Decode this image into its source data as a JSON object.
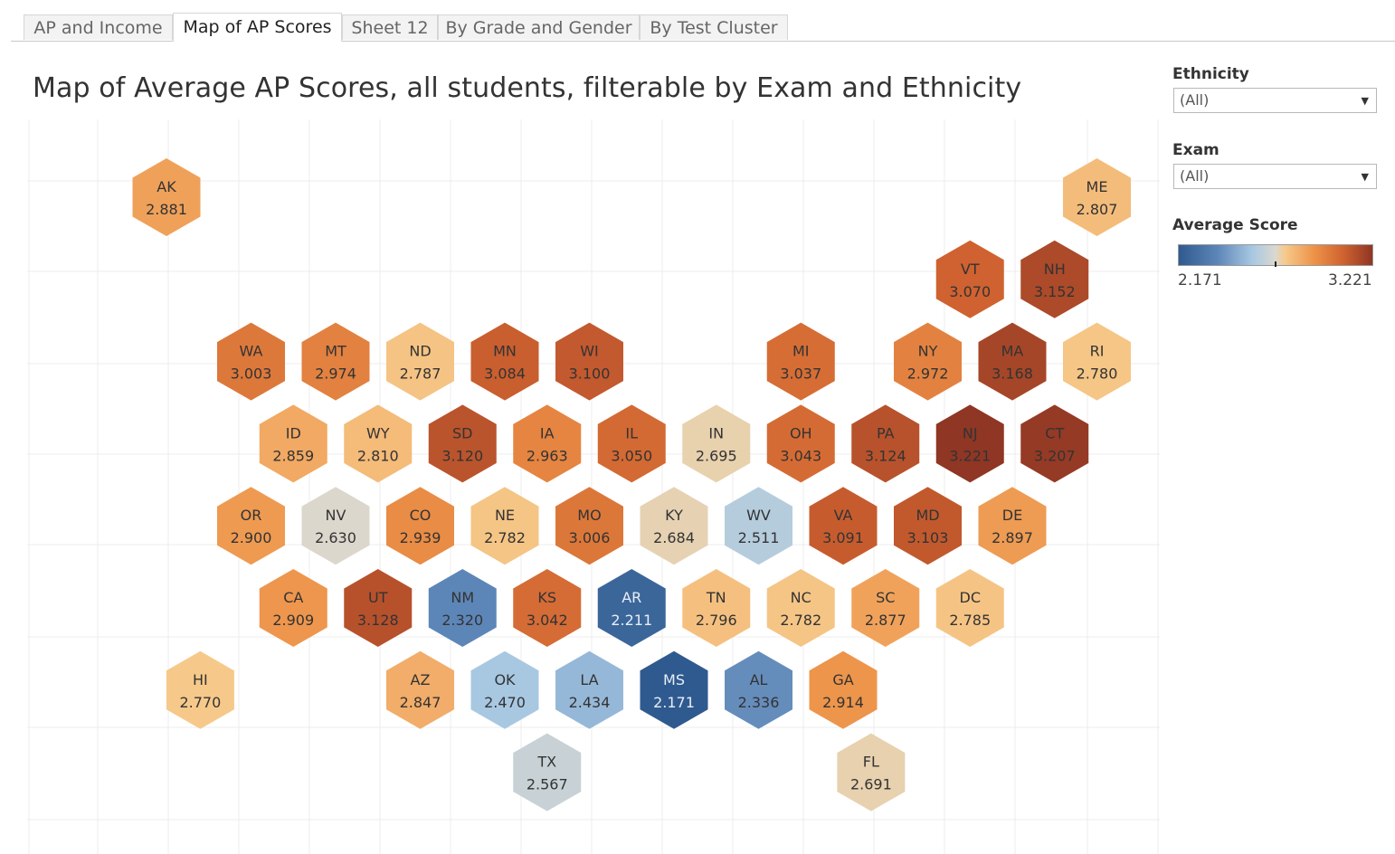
{
  "tabs": [
    {
      "label": "AP and Income",
      "active": false
    },
    {
      "label": "Map of AP Scores",
      "active": true
    },
    {
      "label": "Sheet 12",
      "active": false
    },
    {
      "label": "By Grade and Gender",
      "active": false
    },
    {
      "label": "By Test Cluster",
      "active": false
    }
  ],
  "title": "Map of Average AP Scores, all students, filterable by Exam and Ethnicity",
  "filters": {
    "ethnicity": {
      "label": "Ethnicity",
      "value": "(All)"
    },
    "exam": {
      "label": "Exam",
      "value": "(All)"
    }
  },
  "legend": {
    "title": "Average Score",
    "min": "2.171",
    "max": "3.221",
    "colors": [
      "#2f5a8f",
      "#5d86b8",
      "#a8c8e2",
      "#dad8d0",
      "#f6c98a",
      "#ed9248",
      "#cf6230",
      "#8f3624"
    ]
  },
  "chart_data": {
    "type": "hex tile map",
    "title": "Map of Average AP Scores, all students, filterable by Exam and Ethnicity",
    "value_label": "Average Score",
    "range": [
      2.171,
      3.221
    ],
    "states": [
      {
        "abbr": "AK",
        "value": "2.881",
        "row": 0,
        "col": 1
      },
      {
        "abbr": "ME",
        "value": "2.807",
        "row": 0,
        "col": 12
      },
      {
        "abbr": "VT",
        "value": "3.070",
        "row": 1,
        "col": 10.5
      },
      {
        "abbr": "NH",
        "value": "3.152",
        "row": 1,
        "col": 11.5
      },
      {
        "abbr": "WA",
        "value": "3.003",
        "row": 2,
        "col": 2
      },
      {
        "abbr": "MT",
        "value": "2.974",
        "row": 2,
        "col": 3
      },
      {
        "abbr": "ND",
        "value": "2.787",
        "row": 2,
        "col": 4
      },
      {
        "abbr": "MN",
        "value": "3.084",
        "row": 2,
        "col": 5
      },
      {
        "abbr": "WI",
        "value": "3.100",
        "row": 2,
        "col": 6
      },
      {
        "abbr": "MI",
        "value": "3.037",
        "row": 2,
        "col": 8.5
      },
      {
        "abbr": "NY",
        "value": "2.972",
        "row": 2,
        "col": 10
      },
      {
        "abbr": "MA",
        "value": "3.168",
        "row": 2,
        "col": 11
      },
      {
        "abbr": "RI",
        "value": "2.780",
        "row": 2,
        "col": 12
      },
      {
        "abbr": "ID",
        "value": "2.859",
        "row": 3,
        "col": 2.5
      },
      {
        "abbr": "WY",
        "value": "2.810",
        "row": 3,
        "col": 3.5
      },
      {
        "abbr": "SD",
        "value": "3.120",
        "row": 3,
        "col": 4.5
      },
      {
        "abbr": "IA",
        "value": "2.963",
        "row": 3,
        "col": 5.5
      },
      {
        "abbr": "IL",
        "value": "3.050",
        "row": 3,
        "col": 6.5
      },
      {
        "abbr": "IN",
        "value": "2.695",
        "row": 3,
        "col": 7.5
      },
      {
        "abbr": "OH",
        "value": "3.043",
        "row": 3,
        "col": 8.5
      },
      {
        "abbr": "PA",
        "value": "3.124",
        "row": 3,
        "col": 9.5
      },
      {
        "abbr": "NJ",
        "value": "3.221",
        "row": 3,
        "col": 10.5
      },
      {
        "abbr": "CT",
        "value": "3.207",
        "row": 3,
        "col": 11.5
      },
      {
        "abbr": "OR",
        "value": "2.900",
        "row": 4,
        "col": 2
      },
      {
        "abbr": "NV",
        "value": "2.630",
        "row": 4,
        "col": 3
      },
      {
        "abbr": "CO",
        "value": "2.939",
        "row": 4,
        "col": 4
      },
      {
        "abbr": "NE",
        "value": "2.782",
        "row": 4,
        "col": 5
      },
      {
        "abbr": "MO",
        "value": "3.006",
        "row": 4,
        "col": 6
      },
      {
        "abbr": "KY",
        "value": "2.684",
        "row": 4,
        "col": 7
      },
      {
        "abbr": "WV",
        "value": "2.511",
        "row": 4,
        "col": 8
      },
      {
        "abbr": "VA",
        "value": "3.091",
        "row": 4,
        "col": 9
      },
      {
        "abbr": "MD",
        "value": "3.103",
        "row": 4,
        "col": 10
      },
      {
        "abbr": "DE",
        "value": "2.897",
        "row": 4,
        "col": 11
      },
      {
        "abbr": "CA",
        "value": "2.909",
        "row": 5,
        "col": 2.5
      },
      {
        "abbr": "UT",
        "value": "3.128",
        "row": 5,
        "col": 3.5
      },
      {
        "abbr": "NM",
        "value": "2.320",
        "row": 5,
        "col": 4.5
      },
      {
        "abbr": "KS",
        "value": "3.042",
        "row": 5,
        "col": 5.5
      },
      {
        "abbr": "AR",
        "value": "2.211",
        "row": 5,
        "col": 6.5
      },
      {
        "abbr": "TN",
        "value": "2.796",
        "row": 5,
        "col": 7.5
      },
      {
        "abbr": "NC",
        "value": "2.782",
        "row": 5,
        "col": 8.5
      },
      {
        "abbr": "SC",
        "value": "2.877",
        "row": 5,
        "col": 9.5
      },
      {
        "abbr": "DC",
        "value": "2.785",
        "row": 5,
        "col": 10.5
      },
      {
        "abbr": "HI",
        "value": "2.770",
        "row": 6,
        "col": 1.4
      },
      {
        "abbr": "AZ",
        "value": "2.847",
        "row": 6,
        "col": 4
      },
      {
        "abbr": "OK",
        "value": "2.470",
        "row": 6,
        "col": 5
      },
      {
        "abbr": "LA",
        "value": "2.434",
        "row": 6,
        "col": 6
      },
      {
        "abbr": "MS",
        "value": "2.171",
        "row": 6,
        "col": 7
      },
      {
        "abbr": "AL",
        "value": "2.336",
        "row": 6,
        "col": 8
      },
      {
        "abbr": "GA",
        "value": "2.914",
        "row": 6,
        "col": 9
      },
      {
        "abbr": "TX",
        "value": "2.567",
        "row": 7,
        "col": 5.5
      },
      {
        "abbr": "FL",
        "value": "2.691",
        "row": 7,
        "col": 9.33
      }
    ]
  }
}
